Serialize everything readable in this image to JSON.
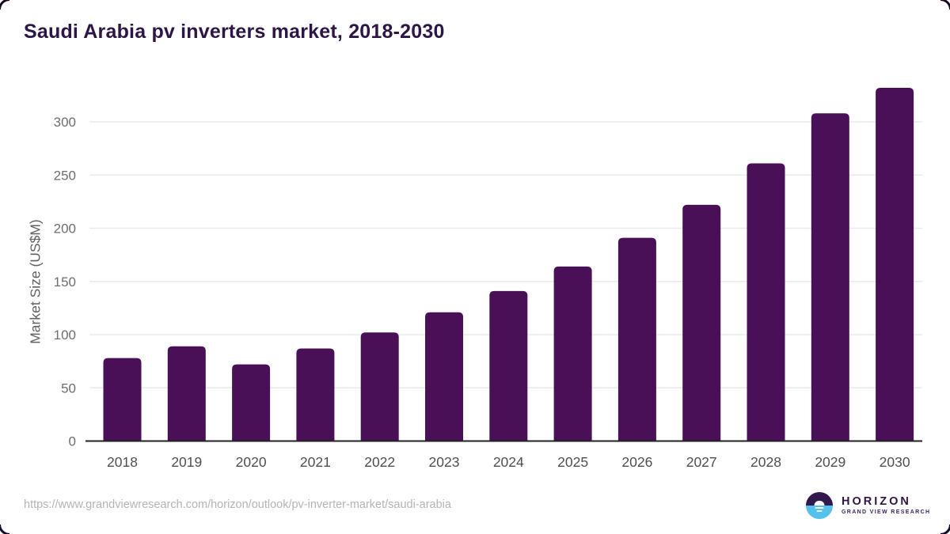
{
  "page": {
    "title": "Saudi Arabia pv inverters market, 2018-2030",
    "source_url": "https://www.grandviewresearch.com/horizon/outlook/pv-inverter-market/saudi-arabia"
  },
  "logo": {
    "brand": "HORIZON",
    "subbrand": "GRAND VIEW RESEARCH",
    "icon": "horizon-sun-icon"
  },
  "colors": {
    "bar": "#4a1057",
    "title_text": "#2d1545",
    "axis_line": "#212121",
    "gridline": "#eaeaea",
    "tick_text": "#6e6e6e",
    "year_text": "#4f4f4f",
    "url_text": "#b4b4b4",
    "logo_purple": "#33184d",
    "logo_blue": "#55c1ed"
  },
  "chart_data": {
    "type": "bar",
    "title": "Saudi Arabia pv inverters market, 2018-2030",
    "categories": [
      "2018",
      "2019",
      "2020",
      "2021",
      "2022",
      "2023",
      "2024",
      "2025",
      "2026",
      "2027",
      "2028",
      "2029",
      "2030"
    ],
    "values": [
      78,
      89,
      72,
      87,
      102,
      121,
      141,
      164,
      191,
      222,
      261,
      308,
      332
    ],
    "xlabel": "",
    "ylabel": "Market Size (US$M)",
    "ylim": [
      0,
      340
    ],
    "yticks": [
      0,
      50,
      100,
      150,
      200,
      250,
      300
    ],
    "grid": true,
    "legend_position": "none",
    "bar_color": "#4a1057"
  }
}
